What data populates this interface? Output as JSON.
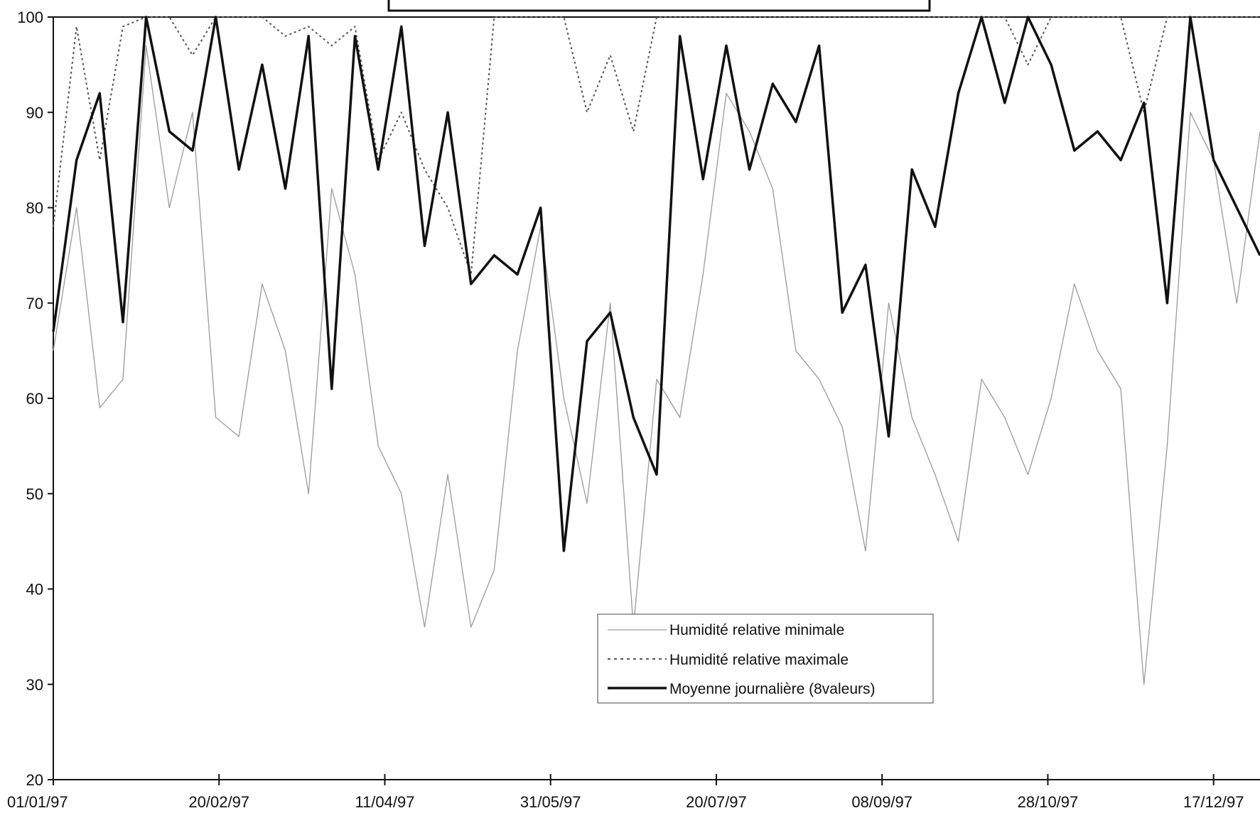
{
  "chart_data": {
    "type": "line",
    "title": "",
    "xlabel": "",
    "ylabel": "",
    "ylim": [
      20,
      100
    ],
    "yticks": [
      20,
      30,
      40,
      50,
      60,
      70,
      80,
      90,
      100
    ],
    "xlim": [
      "1997-01-01",
      "1997-12-31"
    ],
    "xtick_labels": [
      "01/01/97",
      "20/02/97",
      "11/04/97",
      "31/05/97",
      "20/07/97",
      "08/09/97",
      "28/10/97",
      "17/12/97"
    ],
    "legend_position": "center-bottom",
    "grid": false,
    "x": [
      "1997-01-01",
      "1997-01-08",
      "1997-01-15",
      "1997-01-22",
      "1997-01-29",
      "1997-02-05",
      "1997-02-12",
      "1997-02-19",
      "1997-02-26",
      "1997-03-05",
      "1997-03-12",
      "1997-03-19",
      "1997-03-26",
      "1997-04-02",
      "1997-04-09",
      "1997-04-16",
      "1997-04-23",
      "1997-04-30",
      "1997-05-07",
      "1997-05-14",
      "1997-05-21",
      "1997-05-28",
      "1997-06-04",
      "1997-06-11",
      "1997-06-18",
      "1997-06-25",
      "1997-07-02",
      "1997-07-09",
      "1997-07-16",
      "1997-07-23",
      "1997-07-30",
      "1997-08-06",
      "1997-08-13",
      "1997-08-20",
      "1997-08-27",
      "1997-09-03",
      "1997-09-10",
      "1997-09-17",
      "1997-09-24",
      "1997-10-01",
      "1997-10-08",
      "1997-10-15",
      "1997-10-22",
      "1997-10-29",
      "1997-11-05",
      "1997-11-12",
      "1997-11-19",
      "1997-11-26",
      "1997-12-03",
      "1997-12-10",
      "1997-12-17",
      "1997-12-24",
      "1997-12-31"
    ],
    "series": [
      {
        "name": "Humidité relative minimale",
        "style": "thin-gray",
        "color": "#9a9a9a",
        "values": [
          65,
          80,
          59,
          62,
          97,
          80,
          90,
          58,
          56,
          72,
          65,
          50,
          82,
          73,
          55,
          50,
          36,
          52,
          36,
          42,
          65,
          78,
          60,
          49,
          70,
          36,
          62,
          58,
          73,
          92,
          88,
          82,
          65,
          62,
          57,
          44,
          70,
          58,
          52,
          45,
          62,
          58,
          52,
          60,
          72,
          65,
          61,
          30,
          55,
          90,
          85,
          70,
          88
        ]
      },
      {
        "name": "Humidité relative maximale",
        "style": "dotted",
        "color": "#555555",
        "values": [
          78,
          99,
          85,
          99,
          100,
          100,
          96,
          100,
          100,
          100,
          98,
          99,
          97,
          99,
          85,
          90,
          84,
          80,
          73,
          100,
          100,
          100,
          100,
          90,
          96,
          88,
          100,
          100,
          100,
          100,
          100,
          100,
          100,
          100,
          100,
          100,
          100,
          100,
          100,
          100,
          100,
          100,
          95,
          100,
          100,
          100,
          100,
          90,
          100,
          100,
          100,
          100,
          100
        ]
      },
      {
        "name": "Moyenne journalière (8valeurs)",
        "style": "thick-black",
        "color": "#111111",
        "values": [
          67,
          85,
          92,
          68,
          100,
          88,
          86,
          100,
          84,
          95,
          82,
          98,
          61,
          98,
          84,
          99,
          76,
          90,
          72,
          75,
          73,
          80,
          44,
          66,
          69,
          58,
          52,
          98,
          83,
          97,
          84,
          93,
          89,
          97,
          69,
          74,
          56,
          84,
          78,
          92,
          100,
          91,
          100,
          95,
          86,
          88,
          85,
          91,
          70,
          100,
          85,
          80,
          75
        ]
      }
    ]
  },
  "legend": {
    "items": [
      "Humidité relative minimale",
      "Humidité relative maximale",
      "Moyenne journalière (8valeurs)"
    ]
  }
}
